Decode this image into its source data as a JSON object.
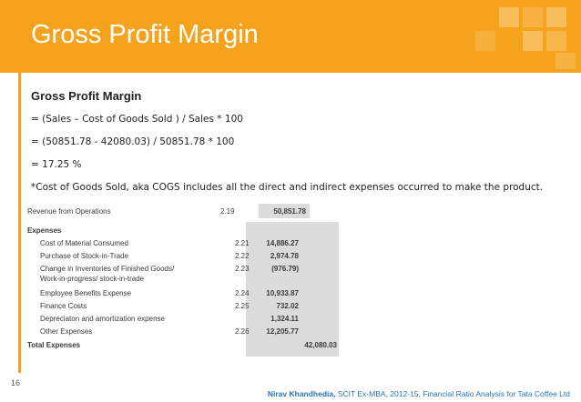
{
  "slide": {
    "title": "Gross Profit Margin",
    "number": "16"
  },
  "body": {
    "heading": "Gross Profit Margin",
    "formula_line1": "= (Sales – Cost of Goods Sold ) / Sales * 100",
    "formula_line2": "= (50851.78 - 42080.03) / 50851.78 * 100",
    "formula_line3": "= 17.25 %",
    "footnote": "*Cost of Goods Sold, aka COGS includes all the direct and indirect expenses occurred to make the product."
  },
  "financials": {
    "revenue": {
      "label": "Revenue from Operations",
      "note": "2.19",
      "value": "50,851.78"
    },
    "expenses_heading": "Expenses",
    "items": [
      {
        "label": "Cost of Material Consumed",
        "note": "2.21",
        "value": "14,886.27"
      },
      {
        "label": "Purchase of Stock-in-Trade",
        "note": "2.22",
        "value": "2,974.78"
      },
      {
        "label": "Change in Inventories of Finished Goods/",
        "label2": "Work-in-progress/ stock-in-trade",
        "note": "2.23",
        "value": "(976.79)"
      },
      {
        "label": "Employee Benefits Expense",
        "note": "2.24",
        "value": "10,933.87"
      },
      {
        "label": "Finance Costs",
        "note": "2.25",
        "value": "732.02"
      },
      {
        "label": "Depreciaton and amortization expense",
        "note": "",
        "value": "1,324.11"
      },
      {
        "label": "Other Expenses",
        "note": "2.26",
        "value": "12,205.77"
      }
    ],
    "total": {
      "label": "Total Expenses",
      "value": "42,080.03"
    }
  },
  "footer": {
    "author": "Nirav Khandhedia,",
    "rest": " SCIT Ex-MBA, 2012-15, Financial Ratio Analysis for Tata Coffee Ltd"
  },
  "colors": {
    "accent": "#f5a21c",
    "footer_text": "#2a74b6"
  }
}
